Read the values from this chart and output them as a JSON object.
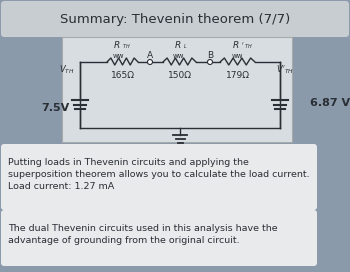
{
  "title": "Summary: Thevenin theorem (7/7)",
  "bg_color": "#8a9aaa",
  "title_bg": "#c8cdd2",
  "circuit_bg": "#d8dde2",
  "text_bg": "#e8eaec",
  "r1_val": "165Ω",
  "r2_val": "150Ω",
  "r3_val": "179Ω",
  "vth_left_val": "7.5V",
  "vth_right_val": "6.87 V",
  "text1_line1": "Putting loads in Thevenin circuits and applying the",
  "text1_line2": "superposition theorem allows you to calculate the load current.",
  "text1_line3": "Load current: 1.27 mA",
  "text2_line1": "The dual Thevenin circuits used in this analysis have the",
  "text2_line2": "advantage of grounding from the original circuit.",
  "font_color": "#2a2f35",
  "wire_color": "#2a2f35",
  "ground_color": "#2a2f35",
  "fig_w": 3.5,
  "fig_h": 2.72,
  "dpi": 100
}
